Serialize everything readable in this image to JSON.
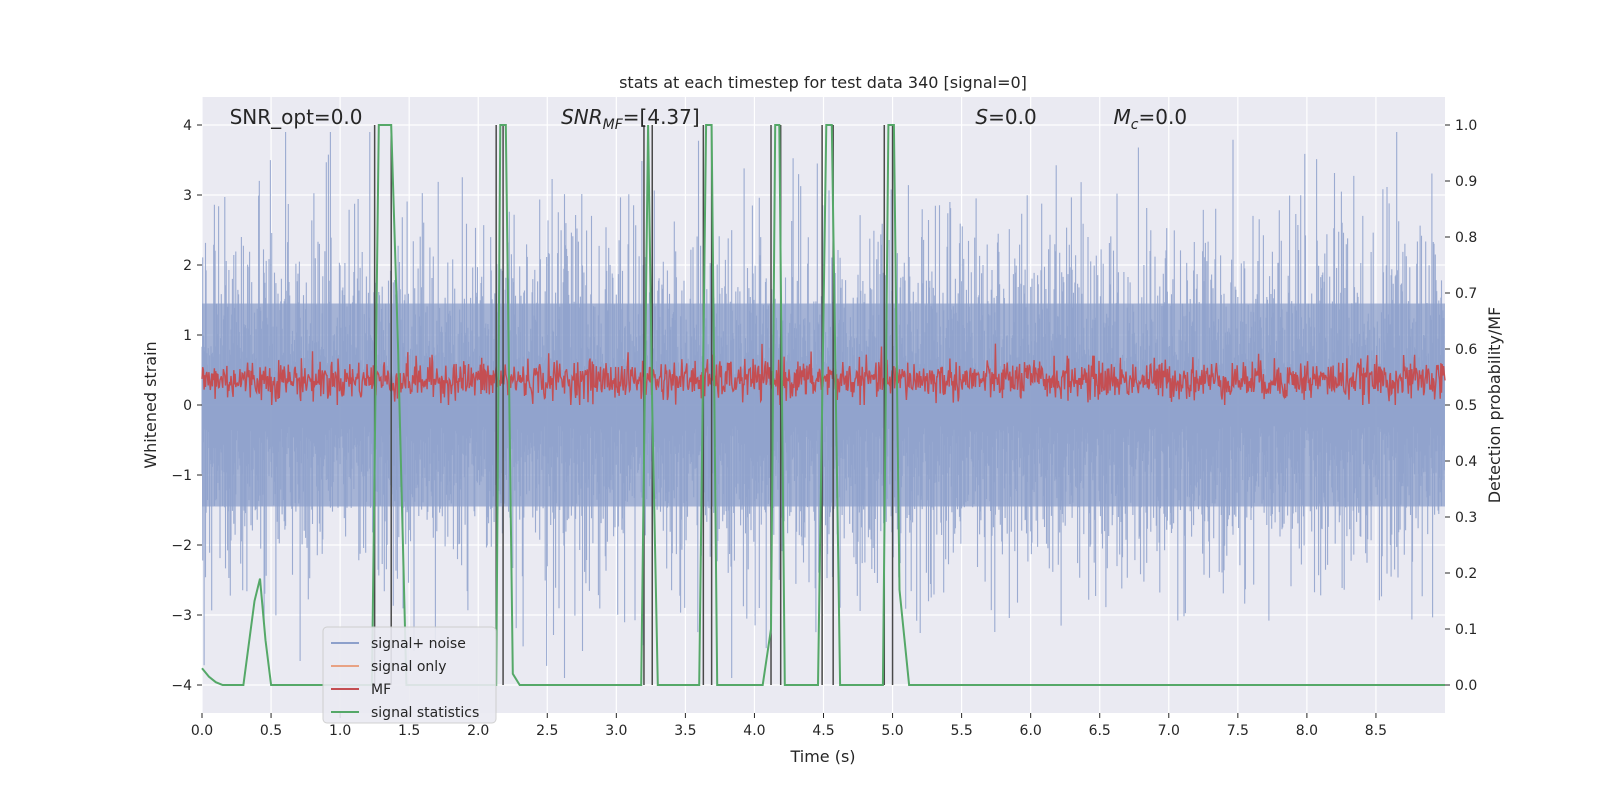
{
  "chart_data": {
    "type": "line",
    "title": "stats at each timestep for test data 340 [signal=0]",
    "xlabel": "Time (s)",
    "ylabel": "Whitened strain",
    "ylabel_right": "Detection probability/MF",
    "xlim": [
      0.0,
      9.0
    ],
    "ylim": [
      -4.4,
      4.4
    ],
    "ylim_right": [
      -0.05,
      1.05
    ],
    "x_ticks": [
      "0.0",
      "0.5",
      "1.0",
      "1.5",
      "2.0",
      "2.5",
      "3.0",
      "3.5",
      "4.0",
      "4.5",
      "5.0",
      "5.5",
      "6.0",
      "6.5",
      "7.0",
      "7.5",
      "8.0",
      "8.5"
    ],
    "y_ticks": [
      "4",
      "3",
      "2",
      "1",
      "0",
      "−1",
      "−2",
      "−3",
      "−4"
    ],
    "y_ticks_right": [
      "1.0",
      "0.9",
      "0.8",
      "0.7",
      "0.6",
      "0.5",
      "0.4",
      "0.3",
      "0.2",
      "0.1",
      "0.0"
    ],
    "grid": true,
    "legend_position": "lower-left",
    "annotations": [
      {
        "text": "SNR_opt=0.0",
        "x": 0.2
      },
      {
        "text": "SNR_MF=[4.37]",
        "x": 2.6
      },
      {
        "text": "S=0.0",
        "x": 5.6
      },
      {
        "text": "M_c=0.0",
        "x": 6.6
      }
    ],
    "series": [
      {
        "name": "signal+ noise",
        "color": "#8da0cb",
        "description": "whitened strain noise, amplitude roughly within -3.5 to 3.5"
      },
      {
        "name": "signal only",
        "color": "#e8a284",
        "values": [
          0
        ]
      },
      {
        "name": "MF",
        "color": "#c44e52",
        "range_right_axis": [
          0.5,
          0.62
        ]
      },
      {
        "name": "signal statistics",
        "color": "#55a868",
        "axis": "right",
        "x": [
          0.0,
          0.05,
          0.1,
          0.15,
          0.2,
          0.3,
          0.38,
          0.42,
          0.46,
          0.5,
          1.23,
          1.28,
          1.33,
          1.37,
          1.42,
          1.48,
          2.13,
          2.16,
          2.2,
          2.25,
          2.3,
          3.18,
          3.23,
          3.26,
          3.3,
          3.6,
          3.65,
          3.69,
          3.73,
          4.06,
          4.12,
          4.15,
          4.18,
          4.22,
          4.46,
          4.52,
          4.56,
          4.62,
          4.93,
          4.97,
          5.01,
          5.05,
          5.12,
          5.2,
          9.0
        ],
        "y": [
          0.03,
          0.015,
          0.005,
          0.0,
          0.0,
          0.0,
          0.15,
          0.19,
          0.08,
          0.0,
          0.0,
          1.0,
          1.0,
          1.0,
          0.6,
          0.0,
          0.0,
          1.0,
          1.0,
          0.02,
          0.0,
          0.0,
          1.0,
          0.5,
          0.0,
          0.0,
          1.0,
          1.0,
          0.0,
          0.0,
          0.1,
          1.0,
          1.0,
          0.0,
          0.0,
          1.0,
          1.0,
          0.0,
          0.0,
          1.0,
          1.0,
          0.17,
          0.0,
          0.0,
          0.0
        ]
      }
    ],
    "vertical_lines_x": [
      1.25,
      1.37,
      2.13,
      2.18,
      3.2,
      3.26,
      3.63,
      3.69,
      4.12,
      4.19,
      4.49,
      4.57,
      4.94,
      5.0
    ]
  }
}
